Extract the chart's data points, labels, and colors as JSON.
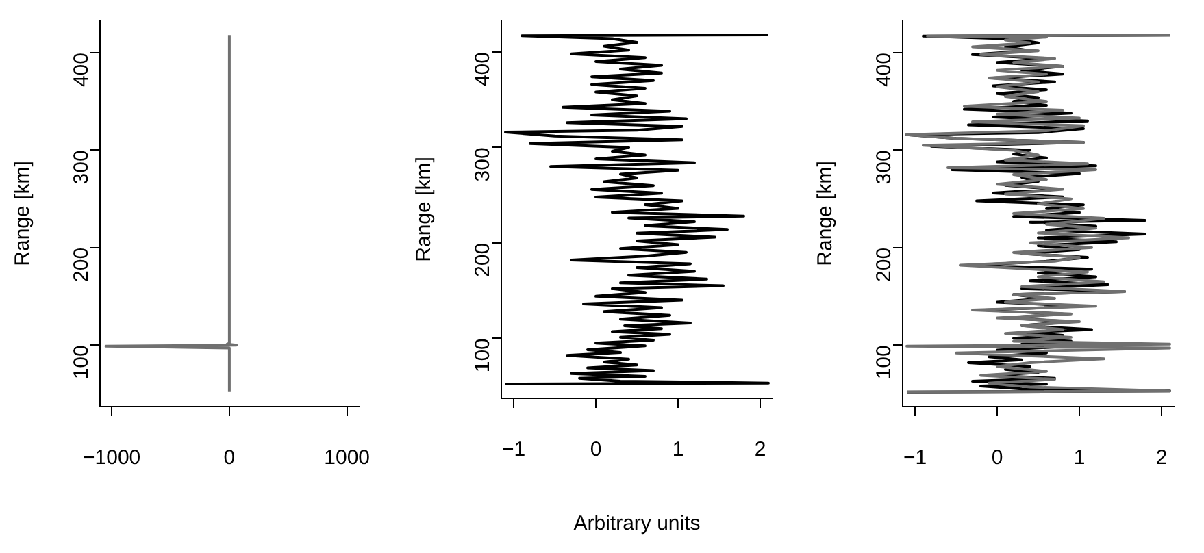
{
  "chart_data": [
    {
      "type": "line",
      "ylabel": "Range [km]",
      "xlim": [
        -1100,
        1100
      ],
      "xticks": [
        -1000,
        0,
        1000
      ],
      "ylim": [
        37,
        433
      ],
      "yticks": [
        100,
        200,
        300,
        400
      ],
      "marker": "none",
      "series": [
        {
          "color": "#707070",
          "x": [
            0,
            0,
            -1050,
            60,
            -20,
            0,
            0
          ],
          "values": [
            52,
            97,
            99,
            100,
            101,
            102,
            418
          ]
        }
      ]
    },
    {
      "type": "line",
      "xlabel": "Arbitrary units",
      "ylabel": "Range [km]",
      "xlim": [
        -1.15,
        2.15
      ],
      "xticks": [
        -1,
        0,
        1,
        2
      ],
      "ylim": [
        37,
        433
      ],
      "yticks": [
        100,
        200,
        300,
        400
      ],
      "marker": "none",
      "series": [
        {
          "color": "#000000",
          "x": [
            -1.1,
            2.1,
            0.3,
            -0.2,
            0.6,
            -0.3,
            0.7,
            -0.1,
            0.5,
            0.1,
            0.4,
            -0.35,
            0.3,
            -0.1,
            0.6,
            0.0,
            0.7,
            0.3,
            0.9,
            0.2,
            0.8,
            0.35,
            1.15,
            0.3,
            0.9,
            0.1,
            0.8,
            -0.15,
            1.05,
            0.0,
            0.6,
            0.2,
            1.55,
            0.3,
            1.35,
            0.4,
            1.2,
            0.5,
            1.15,
            -0.3,
            0.6,
            1.1,
            0.3,
            1.0,
            0.5,
            1.45,
            0.5,
            1.6,
            0.6,
            1.2,
            0.4,
            1.8,
            0.2,
            1.0,
            0.6,
            1.05,
            0.0,
            0.8,
            -0.05,
            0.7,
            0.1,
            0.5,
            0.3,
            1.0,
            -0.55,
            1.2,
            0.0,
            0.6,
            0.2,
            0.4,
            -0.8,
            1.05,
            -0.5,
            -1.1,
            0.5,
            1.05,
            -0.35,
            1.1,
            -0.05,
            0.9,
            -0.4,
            0.6,
            0.2,
            0.5,
            0.0,
            0.6,
            -0.05,
            0.7,
            -0.05,
            0.8,
            0.3,
            0.8,
            0.0,
            0.6,
            -0.3,
            0.4,
            0.1,
            0.5,
            0.2,
            -0.9,
            2.1
          ],
          "values": [
            52,
            53,
            55,
            58,
            60,
            63,
            66,
            69,
            72,
            75,
            78,
            82,
            85,
            88,
            92,
            95,
            98,
            101,
            104,
            107,
            110,
            113,
            116,
            120,
            124,
            128,
            132,
            136,
            140,
            144,
            148,
            152,
            155,
            158,
            162,
            166,
            170,
            174,
            178,
            182,
            186,
            190,
            194,
            198,
            202,
            206,
            210,
            214,
            218,
            222,
            226,
            228,
            232,
            236,
            240,
            244,
            248,
            252,
            256,
            260,
            264,
            268,
            272,
            276,
            280,
            284,
            288,
            292,
            296,
            300,
            304,
            308,
            312,
            316,
            318,
            322,
            326,
            330,
            334,
            338,
            342,
            346,
            350,
            354,
            358,
            362,
            366,
            370,
            374,
            378,
            382,
            386,
            390,
            394,
            398,
            402,
            406,
            410,
            414,
            417,
            418
          ]
        }
      ]
    },
    {
      "type": "line",
      "ylabel": "Range [km]",
      "xlim": [
        -1.15,
        2.15
      ],
      "xticks": [
        -1,
        0,
        1,
        2
      ],
      "ylim": [
        37,
        433
      ],
      "yticks": [
        100,
        200,
        300,
        400
      ],
      "marker": "none",
      "series": [
        {
          "color": "#000000",
          "x": [
            -1.1,
            2.1,
            0.3,
            -0.2,
            0.6,
            -0.3,
            0.7,
            -0.1,
            0.5,
            0.1,
            0.4,
            -0.35,
            0.3,
            -0.1,
            0.6,
            0.0,
            0.7,
            0.3,
            0.9,
            0.2,
            0.8,
            0.35,
            1.15,
            0.3,
            0.9,
            0.1,
            0.8,
            -0.15,
            1.05,
            0.0,
            0.6,
            0.2,
            1.55,
            0.3,
            1.35,
            0.4,
            1.2,
            0.5,
            1.15,
            -0.3,
            0.6,
            1.1,
            0.3,
            1.0,
            0.5,
            1.45,
            0.5,
            1.8,
            0.6,
            1.2,
            0.4,
            1.8,
            0.2,
            1.0,
            0.6,
            1.05,
            -0.25,
            0.8,
            -0.05,
            0.7,
            0.1,
            0.5,
            0.3,
            1.0,
            -0.55,
            1.2,
            0.0,
            0.6,
            0.2,
            0.4,
            -0.8,
            1.05,
            -0.5,
            -1.1,
            0.5,
            1.05,
            -0.35,
            1.1,
            -0.05,
            0.9,
            -0.4,
            0.6,
            0.2,
            0.5,
            0.0,
            0.6,
            -0.05,
            0.7,
            -0.05,
            0.8,
            0.3,
            0.8,
            0.0,
            0.6,
            -0.3,
            0.4,
            0.1,
            0.5,
            0.2,
            -0.9,
            2.1
          ],
          "values": [
            52,
            53,
            55,
            58,
            60,
            63,
            66,
            69,
            72,
            75,
            78,
            82,
            85,
            88,
            92,
            95,
            98,
            101,
            104,
            107,
            110,
            113,
            116,
            120,
            124,
            128,
            132,
            136,
            140,
            144,
            148,
            152,
            155,
            158,
            162,
            166,
            170,
            174,
            178,
            182,
            186,
            190,
            194,
            198,
            202,
            206,
            210,
            214,
            218,
            222,
            226,
            228,
            232,
            236,
            240,
            244,
            248,
            252,
            256,
            260,
            264,
            268,
            272,
            276,
            280,
            284,
            288,
            292,
            296,
            300,
            304,
            308,
            312,
            316,
            318,
            322,
            326,
            330,
            334,
            338,
            342,
            346,
            350,
            354,
            358,
            362,
            366,
            370,
            374,
            378,
            382,
            386,
            390,
            394,
            398,
            402,
            406,
            410,
            414,
            417,
            418
          ]
        },
        {
          "color": "#707070",
          "x": [
            -1.1,
            2.1,
            0.4,
            -0.1,
            0.7,
            -0.2,
            0.6,
            0.0,
            0.4,
            1.3,
            -0.5,
            2.1,
            -1.1,
            2.1,
            0.2,
            0.9,
            0.1,
            0.8,
            0.3,
            1.0,
            0.0,
            0.9,
            -0.3,
            1.2,
            0.1,
            0.7,
            0.2,
            1.55,
            0.3,
            1.3,
            0.5,
            1.1,
            -0.45,
            0.7,
            1.0,
            0.2,
            1.15,
            0.4,
            1.6,
            0.5,
            1.2,
            0.6,
            1.3,
            0.2,
            1.05,
            0.5,
            0.9,
            0.1,
            0.8,
            0.0,
            0.6,
            0.2,
            1.2,
            -0.6,
            1.1,
            0.1,
            0.5,
            0.2,
            -0.9,
            1.05,
            -0.5,
            -1.1,
            0.6,
            1.05,
            -0.3,
            1.0,
            0.0,
            0.8,
            -0.4,
            0.6,
            0.1,
            0.5,
            0.0,
            0.5,
            -0.1,
            0.6,
            0.0,
            0.8,
            0.2,
            0.7,
            -0.2,
            0.5,
            -0.3,
            0.4,
            0.1,
            0.6,
            -0.85,
            2.1
          ],
          "values": [
            52,
            53,
            57,
            61,
            65,
            69,
            73,
            78,
            82,
            86,
            92,
            97,
            99,
            101,
            104,
            108,
            112,
            116,
            120,
            124,
            128,
            132,
            136,
            140,
            144,
            148,
            152,
            155,
            160,
            165,
            170,
            175,
            182,
            186,
            190,
            195,
            200,
            205,
            210,
            215,
            220,
            224,
            230,
            235,
            240,
            245,
            250,
            255,
            260,
            265,
            270,
            275,
            280,
            282,
            286,
            290,
            295,
            300,
            305,
            308,
            312,
            316,
            320,
            325,
            329,
            333,
            337,
            341,
            345,
            350,
            355,
            360,
            365,
            370,
            374,
            378,
            382,
            386,
            390,
            394,
            398,
            402,
            406,
            410,
            413,
            416,
            417,
            418
          ]
        }
      ]
    }
  ]
}
